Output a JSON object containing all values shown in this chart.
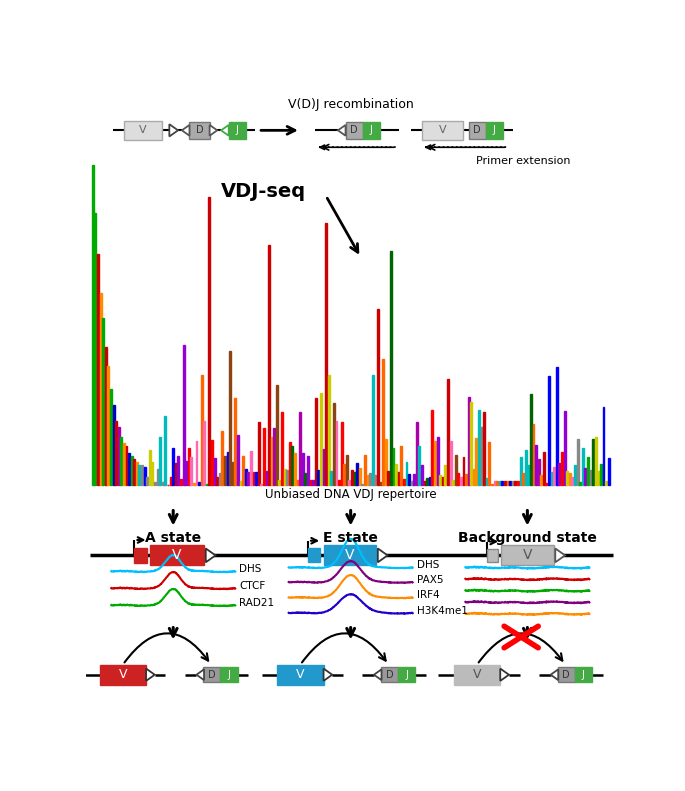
{
  "top_label": "V(D)J recombination",
  "primer_label": "Primer extension",
  "vdj_label": "VDJ-seq",
  "repertoire_label": "Unbiased DNA VDJ repertoire",
  "state_labels": [
    "A state",
    "E state",
    "Background state"
  ],
  "track_labels_A": [
    "DHS",
    "CTCF",
    "RAD21"
  ],
  "track_colors_A": [
    "#00BFFF",
    "#CC0000",
    "#00AA00"
  ],
  "track_labels_E": [
    "DHS",
    "PAX5",
    "IRF4",
    "H3K4me1"
  ],
  "track_colors_E": [
    "#00BFFF",
    "#800080",
    "#FF8C00",
    "#2200CC"
  ],
  "track_colors_BG": [
    "#00BFFF",
    "#CC0000",
    "#00AA00",
    "#800080",
    "#FF8C00"
  ],
  "colors": {
    "red_box": "#CC2222",
    "blue_box": "#2299CC",
    "gray_box": "#BBBBBB",
    "light_gray": "#DDDDDD",
    "green_box": "#44AA44",
    "dark_gray_d": "#999999"
  },
  "fig_w": 6.85,
  "fig_h": 7.91
}
